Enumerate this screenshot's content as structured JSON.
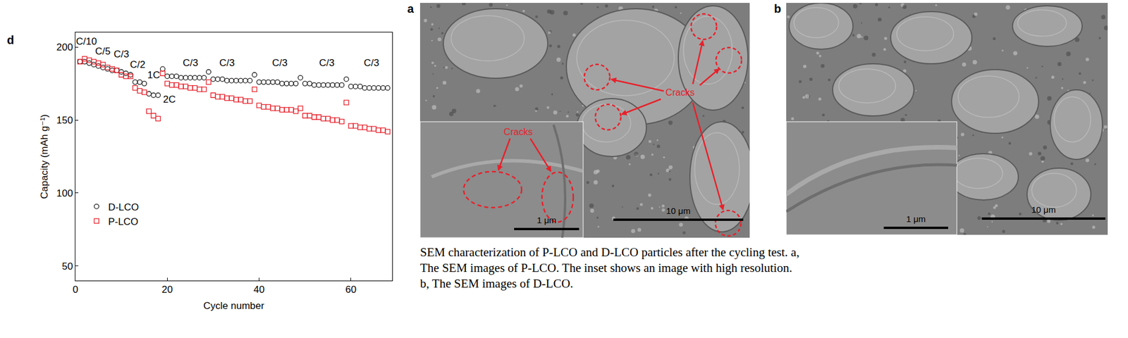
{
  "chart_data": {
    "type": "scatter",
    "panel_label": "d",
    "x_label": "Cycle number",
    "y_label": "Capacity (mAh g⁻¹)",
    "xlim": [
      0,
      69
    ],
    "xticks": [
      0,
      20,
      40,
      60
    ],
    "ylim": [
      40,
      210
    ],
    "yticks": [
      50,
      100,
      150,
      200
    ],
    "grid": false,
    "legend": "lower left",
    "x": [
      1,
      2,
      3,
      4,
      5,
      6,
      7,
      8,
      9,
      10,
      11,
      12,
      13,
      14,
      15,
      16,
      17,
      18,
      19,
      20,
      21,
      22,
      23,
      24,
      25,
      26,
      27,
      28,
      29,
      30,
      31,
      32,
      33,
      34,
      35,
      36,
      37,
      38,
      39,
      40,
      41,
      42,
      43,
      44,
      45,
      46,
      47,
      48,
      49,
      50,
      51,
      52,
      53,
      54,
      55,
      56,
      57,
      58,
      59,
      60,
      61,
      62,
      63,
      64,
      65,
      66,
      67,
      68
    ],
    "series": [
      {
        "name": "D-LCO",
        "color": "#222222",
        "marker": "circle-open",
        "values": [
          190,
          190,
          189,
          188,
          187,
          186,
          185,
          184,
          184,
          183,
          182,
          181,
          176,
          176,
          175,
          168,
          167,
          167,
          185,
          180,
          180,
          180,
          179,
          179,
          179,
          179,
          179,
          179,
          183,
          178,
          178,
          178,
          177,
          177,
          177,
          177,
          177,
          177,
          181,
          176,
          176,
          176,
          176,
          176,
          175,
          175,
          175,
          175,
          179,
          175,
          175,
          174,
          174,
          174,
          174,
          174,
          174,
          174,
          178,
          173,
          173,
          173,
          172,
          172,
          172,
          172,
          172,
          172
        ]
      },
      {
        "name": "P-LCO",
        "color": "#e8202a",
        "marker": "square-open",
        "values": [
          190,
          192,
          191,
          190,
          189,
          188,
          186,
          185,
          184,
          181,
          180,
          180,
          172,
          170,
          169,
          156,
          153,
          151,
          182,
          175,
          174,
          174,
          173,
          173,
          172,
          172,
          171,
          171,
          176,
          167,
          166,
          166,
          165,
          165,
          164,
          164,
          163,
          163,
          171,
          160,
          159,
          159,
          158,
          158,
          157,
          157,
          157,
          156,
          158,
          153,
          153,
          152,
          152,
          151,
          151,
          150,
          150,
          149,
          162,
          146,
          146,
          145,
          145,
          144,
          144,
          143,
          143,
          142
        ]
      }
    ],
    "annotations": [
      {
        "text": "C/10",
        "x": 2.4,
        "y": 204
      },
      {
        "text": "C/5",
        "x": 6,
        "y": 197
      },
      {
        "text": "C/3",
        "x": 10,
        "y": 195
      },
      {
        "text": "C/2",
        "x": 13.5,
        "y": 188
      },
      {
        "text": "1C",
        "x": 17,
        "y": 181
      },
      {
        "text": "2C",
        "x": 20.5,
        "y": 164
      },
      {
        "text": "C/3",
        "x": 25,
        "y": 189
      },
      {
        "text": "C/3",
        "x": 33,
        "y": 189
      },
      {
        "text": "C/3",
        "x": 44.5,
        "y": 189
      },
      {
        "text": "C/3",
        "x": 54.7,
        "y": 189
      },
      {
        "text": "C/3",
        "x": 64.5,
        "y": 189
      }
    ]
  },
  "figure": {
    "panels": [
      {
        "letter": "a",
        "main_label": "Cracks",
        "inset_label": "Cracks",
        "inset_scale": "1 μm",
        "scale": "10 μm"
      },
      {
        "letter": "b",
        "inset_scale": "1 μm",
        "scale": "10 μm"
      }
    ],
    "caption": [
      "SEM characterization of P-LCO and D-LCO particles after the cycling test. a,",
      "The SEM images of P-LCO. The inset shows an image with high resolution.",
      "b, The SEM images of D-LCO."
    ]
  }
}
